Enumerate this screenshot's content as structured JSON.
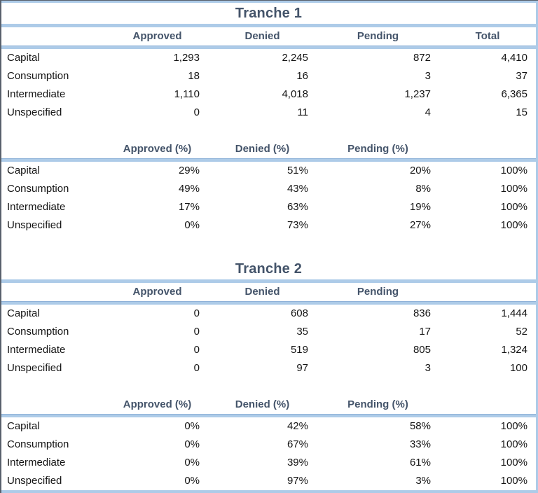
{
  "style": {
    "heading_text_color": "#44546A",
    "separator_band_color": "#ADCBE8",
    "separator_edge_color": "#8FB2D8",
    "body_text_color": "#141414",
    "background_color": "#FFFFFF"
  },
  "chart_data": [
    {
      "type": "table",
      "title": "Tranche 1",
      "counts": {
        "headers": [
          "Approved",
          "Denied",
          "Pending",
          "Total"
        ],
        "rows": [
          {
            "label": "Capital",
            "values": [
              "1,293",
              "2,245",
              "872",
              "4,410"
            ]
          },
          {
            "label": "Consumption",
            "values": [
              "18",
              "16",
              "3",
              "37"
            ]
          },
          {
            "label": "Intermediate",
            "values": [
              "1,110",
              "4,018",
              "1,237",
              "6,365"
            ]
          },
          {
            "label": "Unspecified",
            "values": [
              "0",
              "11",
              "4",
              "15"
            ]
          }
        ]
      },
      "percents": {
        "headers": [
          "Approved (%)",
          "Denied (%)",
          "Pending (%)",
          ""
        ],
        "rows": [
          {
            "label": "Capital",
            "values": [
              "29%",
              "51%",
              "20%",
              "100%"
            ]
          },
          {
            "label": "Consumption",
            "values": [
              "49%",
              "43%",
              "8%",
              "100%"
            ]
          },
          {
            "label": "Intermediate",
            "values": [
              "17%",
              "63%",
              "19%",
              "100%"
            ]
          },
          {
            "label": "Unspecified",
            "values": [
              "0%",
              "73%",
              "27%",
              "100%"
            ]
          }
        ]
      }
    },
    {
      "type": "table",
      "title": "Tranche 2",
      "counts": {
        "headers": [
          "Approved",
          "Denied",
          "Pending",
          ""
        ],
        "rows": [
          {
            "label": "Capital",
            "values": [
              "0",
              "608",
              "836",
              "1,444"
            ]
          },
          {
            "label": "Consumption",
            "values": [
              "0",
              "35",
              "17",
              "52"
            ]
          },
          {
            "label": "Intermediate",
            "values": [
              "0",
              "519",
              "805",
              "1,324"
            ]
          },
          {
            "label": "Unspecified",
            "values": [
              "0",
              "97",
              "3",
              "100"
            ]
          }
        ]
      },
      "percents": {
        "headers": [
          "Approved (%)",
          "Denied (%)",
          "Pending (%)",
          ""
        ],
        "rows": [
          {
            "label": "Capital",
            "values": [
              "0%",
              "42%",
              "58%",
              "100%"
            ]
          },
          {
            "label": "Consumption",
            "values": [
              "0%",
              "67%",
              "33%",
              "100%"
            ]
          },
          {
            "label": "Intermediate",
            "values": [
              "0%",
              "39%",
              "61%",
              "100%"
            ]
          },
          {
            "label": "Unspecified",
            "values": [
              "0%",
              "97%",
              "3%",
              "100%"
            ]
          }
        ]
      }
    }
  ]
}
